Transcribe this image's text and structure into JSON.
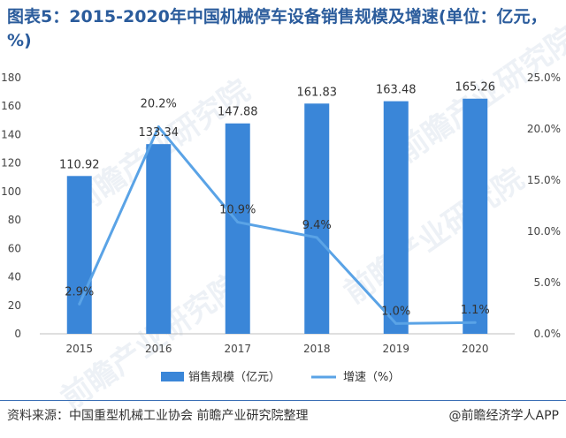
{
  "title": "图表5：2015-2020年中国机械停车设备销售规模及增速(单位：亿元，%)",
  "source": "资料来源：中国重型机械工业协会 前瞻产业研究院整理",
  "credit": "@前瞻经济学人APP",
  "watermark": "前瞻产业研究院",
  "colors": {
    "bar": "#3a86d8",
    "line": "#5aa3e6",
    "axis_text": "#444444"
  },
  "chart_data": {
    "type": "bar",
    "categories": [
      "2015",
      "2016",
      "2017",
      "2018",
      "2019",
      "2020"
    ],
    "series": [
      {
        "name": "销售规模（亿元）",
        "type": "bar",
        "axis": "left",
        "values": [
          110.92,
          133.34,
          147.88,
          161.83,
          163.48,
          165.26
        ],
        "labels": [
          "110.92",
          "133.34",
          "147.88",
          "161.83",
          "163.48",
          "165.26"
        ]
      },
      {
        "name": "增速（%）",
        "type": "line",
        "axis": "right",
        "values": [
          2.9,
          20.2,
          10.9,
          9.4,
          1.0,
          1.1
        ],
        "labels": [
          "2.9%",
          "20.2%",
          "10.9%",
          "9.4%",
          "1.0%",
          "1.1%"
        ]
      }
    ],
    "y_left": {
      "min": 0,
      "max": 180,
      "ticks": [
        "0",
        "20",
        "40",
        "60",
        "80",
        "100",
        "120",
        "140",
        "160",
        "180"
      ]
    },
    "y_right": {
      "min": 0,
      "max": 25,
      "ticks": [
        "0.0%",
        "5.0%",
        "10.0%",
        "15.0%",
        "20.0%",
        "25.0%"
      ]
    },
    "legend_position": "bottom",
    "grid": false
  }
}
